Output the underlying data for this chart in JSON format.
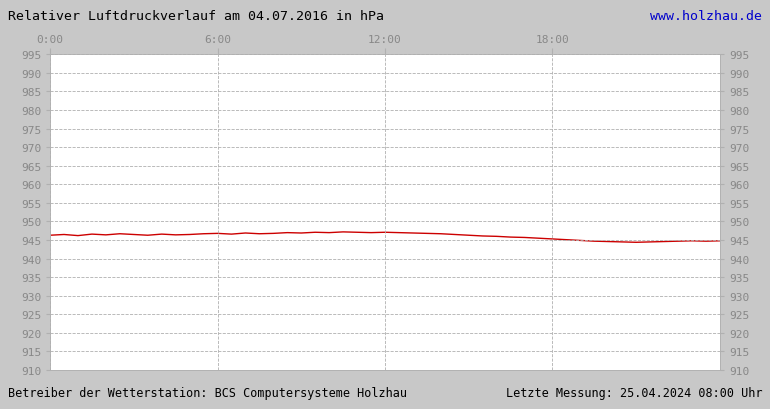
{
  "title": "Relativer Luftdruckverlauf am 04.07.2016 in hPa",
  "url_text": "www.holzhau.de",
  "footer_left": "Betreiber der Wetterstation: BCS Computersysteme Holzhau",
  "footer_right": "Letzte Messung: 25.04.2024 08:00 Uhr",
  "xlim": [
    0,
    1440
  ],
  "ylim": [
    910,
    995
  ],
  "xtick_positions": [
    0,
    360,
    720,
    1080
  ],
  "xtick_labels": [
    "0:00",
    "6:00",
    "12:00",
    "18:00"
  ],
  "ytick_step": 5,
  "figure_bg_color": "#c8c8c8",
  "plot_bg_color": "#ffffff",
  "line_color": "#cc0000",
  "grid_color": "#b0b0b0",
  "tick_label_color": "#888888",
  "title_color": "#000000",
  "url_color": "#0000cc",
  "footer_color": "#000000",
  "pressure_data_x": [
    0,
    30,
    60,
    90,
    120,
    150,
    180,
    210,
    240,
    270,
    300,
    330,
    360,
    390,
    420,
    450,
    480,
    510,
    540,
    570,
    600,
    630,
    660,
    690,
    720,
    750,
    780,
    810,
    840,
    870,
    900,
    930,
    960,
    990,
    1020,
    1050,
    1080,
    1110,
    1140,
    1170,
    1200,
    1230,
    1260,
    1290,
    1320,
    1350,
    1380,
    1410,
    1440
  ],
  "pressure_data_y": [
    946.3,
    946.5,
    946.2,
    946.6,
    946.4,
    946.7,
    946.5,
    946.3,
    946.6,
    946.4,
    946.5,
    946.7,
    946.8,
    946.6,
    946.9,
    946.7,
    946.8,
    947.0,
    946.9,
    947.1,
    947.0,
    947.2,
    947.1,
    947.0,
    947.1,
    947.0,
    946.9,
    946.8,
    946.7,
    946.5,
    946.3,
    946.1,
    946.0,
    945.8,
    945.7,
    945.5,
    945.3,
    945.1,
    944.9,
    944.7,
    944.6,
    944.5,
    944.4,
    944.5,
    944.6,
    944.7,
    944.8,
    944.7,
    944.8
  ]
}
